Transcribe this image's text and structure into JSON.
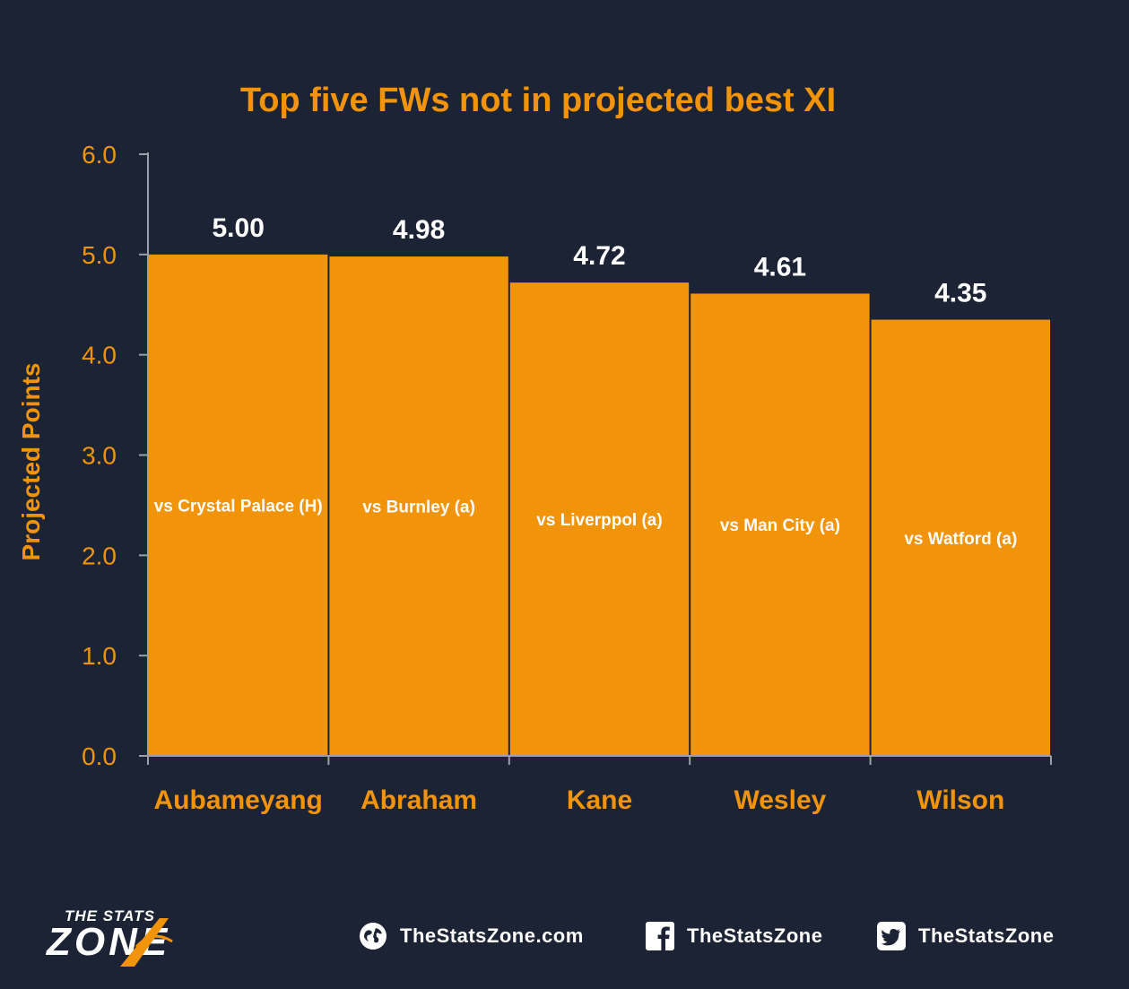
{
  "chart_data": {
    "type": "bar",
    "title": "Top five FWs not in projected best XI",
    "xlabel": "",
    "ylabel": "Projected Points",
    "ylim": [
      0,
      6
    ],
    "yticks": [
      "0.0",
      "1.0",
      "2.0",
      "3.0",
      "4.0",
      "5.0",
      "6.0"
    ],
    "grid": false,
    "legend": "none",
    "bar_color": "#f2940a",
    "categories": [
      "Aubameyang",
      "Abraham",
      "Kane",
      "Wesley",
      "Wilson"
    ],
    "values": [
      5.0,
      4.98,
      4.72,
      4.61,
      4.35
    ],
    "value_labels": [
      "5.00",
      "4.98",
      "4.72",
      "4.61",
      "4.35"
    ],
    "annotations": [
      "vs Crystal Palace (H)",
      "vs Burnley (a)",
      "vs Liverppol (a)",
      "vs Man City (a)",
      "vs Watford (a)"
    ]
  },
  "footer": {
    "logo_top": "THE STATS",
    "logo_main": "ZONE",
    "website": "TheStatsZone.com",
    "facebook": "TheStatsZone",
    "twitter": "TheStatsZone",
    "website_icon": "globe-icon",
    "facebook_icon": "facebook-icon",
    "twitter_icon": "twitter-icon"
  }
}
